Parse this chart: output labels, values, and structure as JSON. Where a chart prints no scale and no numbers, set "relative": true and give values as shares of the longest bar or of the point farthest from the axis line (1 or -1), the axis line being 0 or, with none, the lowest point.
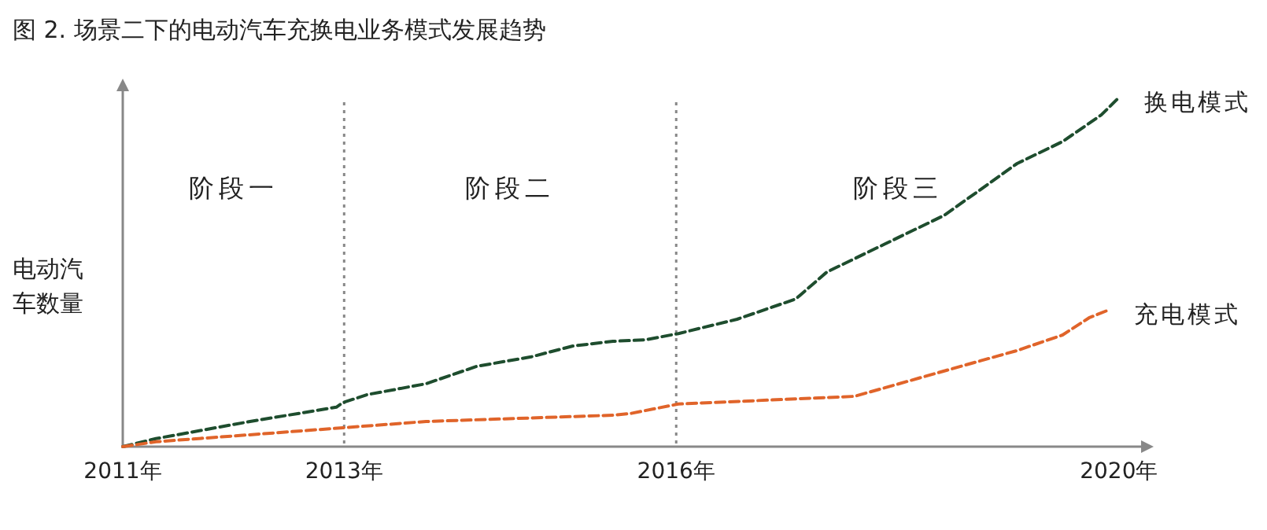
{
  "chart_data": {
    "type": "line",
    "title": "图 2. 场景二下的电动汽车充换电业务模式发展趋势",
    "ylabel": "电动汽车数量",
    "relative": true,
    "line_style": "dashed",
    "marker": "none",
    "tick_labels": "x",
    "xlim": [
      2011,
      2020.2
    ],
    "xticks": [
      {
        "value": 2011,
        "label": "2011年"
      },
      {
        "value": 2013,
        "label": "2013年"
      },
      {
        "value": 2016,
        "label": "2016年"
      },
      {
        "value": 2020,
        "label": "2020年"
      }
    ],
    "ref_lines": [
      {
        "axis": "x",
        "value": 2013,
        "color": "#888888",
        "line_style": "dotted"
      },
      {
        "axis": "x",
        "value": 2016,
        "color": "#888888",
        "line_style": "dotted"
      }
    ],
    "annotations": [
      "阶段一",
      "阶段二",
      "阶段三"
    ],
    "series": [
      {
        "name": "换电模式",
        "color": "#1e4d2e",
        "x": [
          2011,
          2011.3,
          2012.15,
          2012.93,
          2012.99,
          2013.21,
          2013.74,
          2014.2,
          2014.69,
          2015.06,
          2015.43,
          2015.72,
          2016.02,
          2016.55,
          2017.08,
          2017.36,
          2017.89,
          2018.42,
          2019.08,
          2019.49,
          2019.84,
          2020
        ],
        "values": [
          0,
          0.023,
          0.072,
          0.113,
          0.126,
          0.149,
          0.18,
          0.23,
          0.257,
          0.288,
          0.302,
          0.306,
          0.324,
          0.365,
          0.423,
          0.5,
          0.581,
          0.662,
          0.811,
          0.874,
          0.95,
          1
        ]
      },
      {
        "name": "充电模式",
        "color": "#e0642a",
        "x": [
          2011,
          2011.3,
          2012.99,
          2013.74,
          2015.43,
          2015.59,
          2016.02,
          2017.61,
          2018.37,
          2019.08,
          2019.49,
          2019.73,
          2019.91
        ],
        "values": [
          0,
          0.014,
          0.054,
          0.072,
          0.09,
          0.095,
          0.122,
          0.144,
          0.212,
          0.275,
          0.32,
          0.369,
          0.392
        ]
      }
    ]
  }
}
